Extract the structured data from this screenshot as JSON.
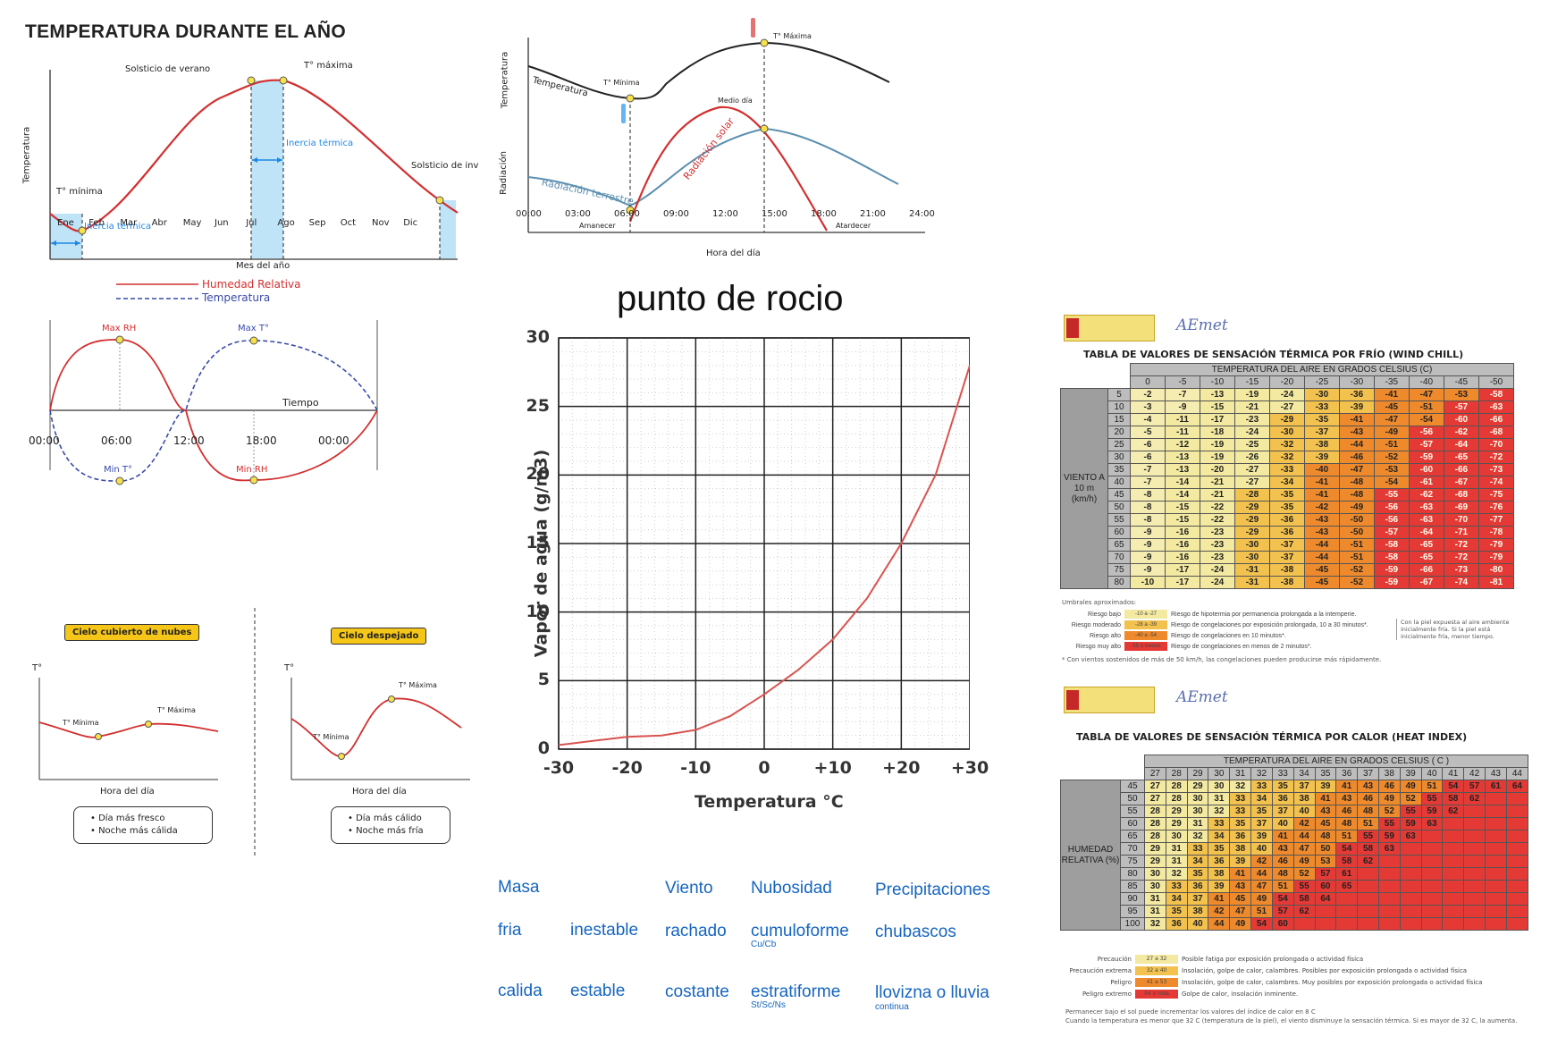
{
  "annual": {
    "title": "TEMPERATURA DURANTE EL AÑO",
    "ylabel": "Temperatura",
    "xlabel": "Mes del año",
    "months": [
      "Ene",
      "Feb",
      "Mar",
      "Abr",
      "May",
      "Jun",
      "Jul",
      "Ago",
      "Sep",
      "Oct",
      "Nov",
      "Dic"
    ],
    "labels": {
      "solsticio_verano": "Solsticio de verano",
      "tmax": "T° máxima",
      "tmin": "T° mínima",
      "inercia1": "Inercia térmica",
      "inercia2": "Inercia térmica",
      "solsticio_invierno": "Solsticio de inv"
    }
  },
  "daily": {
    "ylabel_top": "Temperatura",
    "ylabel_bottom": "Radiación",
    "xlabel": "Hora del día",
    "hours": [
      "00:00",
      "03:00",
      "06:00",
      "09:00",
      "12:00",
      "15:00",
      "18:00",
      "21:00",
      "24:00"
    ],
    "labels": {
      "temperatura": "Temperatura",
      "tmin": "T° Mínima",
      "tmax": "T° Máxima",
      "medio_dia": "Medio día",
      "rad_solar": "Radiación solar",
      "rad_terrestre": "Radiación terrestre",
      "amanecer": "Amanecer",
      "atardecer": "Atardecer"
    }
  },
  "humidity": {
    "legend_rh": "Humedad Relativa",
    "legend_temp": "Temperatura",
    "labels": {
      "max_rh": "Max RH",
      "max_t": "Max T°",
      "min_t": "Min T°",
      "min_rh": "Min RH",
      "tiempo": "Tiempo"
    },
    "hours": [
      "00:00",
      "06:00",
      "12:00",
      "18:00",
      "00:00"
    ]
  },
  "clouds": {
    "left_title": "Cielo cubierto de nubes",
    "right_title": "Cielo despejado",
    "axis_t": "T°",
    "xlabel": "Hora del día",
    "tmin": "T° Mínima",
    "tmax": "T° Máxima",
    "left_notes": [
      "Día más fresco",
      "Noche más cálida"
    ],
    "right_notes": [
      "Día más cálido",
      "Noche más fría"
    ]
  },
  "dewpoint": {
    "title": "punto de rocio",
    "colors": {
      "curve": "#d9534f"
    }
  },
  "chart_data": {
    "type": "line",
    "title": "",
    "xlabel": "Temperatura °C",
    "ylabel": "Vapor de agua (g/m3)",
    "xticks": [
      "-30",
      "-20",
      "-10",
      "0",
      "+10",
      "+20",
      "+30"
    ],
    "yticks": [
      "0",
      "5",
      "10",
      "15",
      "20",
      "25",
      "30"
    ],
    "xlim": [
      -30,
      30
    ],
    "ylim": [
      0,
      30
    ],
    "grid": true,
    "series": [
      {
        "x": [
          -30,
          -25,
          -20,
          -15,
          -10,
          -5,
          0,
          5,
          10,
          15,
          20,
          25,
          30
        ],
        "values": [
          0.3,
          0.6,
          0.9,
          1.0,
          1.4,
          2.4,
          4.0,
          5.8,
          8.0,
          11.0,
          15.0,
          20.0,
          28.0
        ]
      }
    ]
  },
  "air_masses": {
    "headers": [
      "Masa",
      "Viento",
      "Nubosidad",
      "Precipitaciones"
    ],
    "rows": [
      {
        "masa": "fria",
        "estab": "inestable",
        "viento": "rachado",
        "nub": "cumuloforme",
        "nub_sub": "Cu/Cb",
        "prec": "chubascos",
        "prec_sub": ""
      },
      {
        "masa": "calida",
        "estab": "estable",
        "viento": "costante",
        "nub": "estratiforme",
        "nub_sub": "St/Sc/Ns",
        "prec": "llovizna o lluvia",
        "prec_sub": "continua"
      }
    ]
  },
  "windchill": {
    "org": "AEmet",
    "title": "TABLA DE VALORES DE SENSACIÓN TÉRMICA POR FRÍO (WIND CHILL)",
    "col_caption": "TEMPERATURA DEL AIRE EN GRADOS CELSIUS (C)",
    "row_caption": "VIENTO A 10 m (km/h)",
    "temps": [
      "0",
      "-5",
      "-10",
      "-15",
      "-20",
      "-25",
      "-30",
      "-35",
      "-40",
      "-45",
      "-50"
    ],
    "winds": [
      "5",
      "10",
      "15",
      "20",
      "25",
      "30",
      "35",
      "40",
      "45",
      "50",
      "55",
      "60",
      "65",
      "70",
      "75",
      "80"
    ],
    "values": [
      [
        -2,
        -7,
        -13,
        -19,
        -24,
        -30,
        -36,
        -41,
        -47,
        -53,
        -58
      ],
      [
        -3,
        -9,
        -15,
        -21,
        -27,
        -33,
        -39,
        -45,
        -51,
        -57,
        -63
      ],
      [
        -4,
        -11,
        -17,
        -23,
        -29,
        -35,
        -41,
        -47,
        -54,
        -60,
        -66
      ],
      [
        -5,
        -11,
        -18,
        -24,
        -30,
        -37,
        -43,
        -49,
        -56,
        -62,
        -68
      ],
      [
        -6,
        -12,
        -19,
        -25,
        -32,
        -38,
        -44,
        -51,
        -57,
        -64,
        -70
      ],
      [
        -6,
        -13,
        -19,
        -26,
        -32,
        -39,
        -46,
        -52,
        -59,
        -65,
        -72
      ],
      [
        -7,
        -13,
        -20,
        -27,
        -33,
        -40,
        -47,
        -53,
        -60,
        -66,
        -73
      ],
      [
        -7,
        -14,
        -21,
        -27,
        -34,
        -41,
        -48,
        -54,
        -61,
        -67,
        -74
      ],
      [
        -8,
        -14,
        -21,
        -28,
        -35,
        -41,
        -48,
        -55,
        -62,
        -68,
        -75
      ],
      [
        -8,
        -15,
        -22,
        -29,
        -35,
        -42,
        -49,
        -56,
        -63,
        -69,
        -76
      ],
      [
        -8,
        -15,
        -22,
        -29,
        -36,
        -43,
        -50,
        -56,
        -63,
        -70,
        -77
      ],
      [
        -9,
        -16,
        -23,
        -29,
        -36,
        -43,
        -50,
        -57,
        -64,
        -71,
        -78
      ],
      [
        -9,
        -16,
        -23,
        -30,
        -37,
        -44,
        -51,
        -58,
        -65,
        -72,
        -79
      ],
      [
        -9,
        -16,
        -23,
        -30,
        -37,
        -44,
        -51,
        -58,
        -65,
        -72,
        -79
      ],
      [
        -9,
        -17,
        -24,
        -31,
        -38,
        -45,
        -52,
        -59,
        -66,
        -73,
        -80
      ],
      [
        -10,
        -17,
        -24,
        -31,
        -38,
        -45,
        -52,
        -59,
        -67,
        -74,
        -81
      ]
    ],
    "legend_title": "Umbrales aproximados:",
    "legend": [
      {
        "label": "Riesgo bajo",
        "range": "-10 a -27",
        "desc": "Riesgo de hipotermia por permanencia prolongada a la intemperie.",
        "color": "#f3e9a0"
      },
      {
        "label": "Riesgo moderado",
        "range": "-28 a -39",
        "desc": "Riesgo de congelaciones por exposición prolongada, 10 a 30 minutos*.",
        "color": "#f2c14e"
      },
      {
        "label": "Riesgo alto",
        "range": "-40 a -54",
        "desc": "Riesgo de congelaciones en 10 minutos*.",
        "color": "#ee8a2c"
      },
      {
        "label": "Riesgo muy alto",
        "range": "-55 o menos",
        "desc": "Riesgo de congelaciones en menos de 2 minutos*.",
        "color": "#e53935"
      }
    ],
    "side_note": "Con la piel expuesta al aire ambiente inicialmente fría. Si la piel está inicialmente fría, menor tiempo.",
    "footnote": "* Con vientos sostenidos de más de 50 km/h, las congelaciones pueden producirse más rápidamente."
  },
  "heatindex": {
    "org": "AEmet",
    "title": "TABLA DE VALORES DE SENSACIÓN TÉRMICA POR CALOR (HEAT INDEX)",
    "col_caption": "TEMPERATURA DEL AIRE EN GRADOS CELSIUS ( C )",
    "row_caption": "HUMEDAD RELATIVA (%)",
    "temps": [
      "27",
      "28",
      "29",
      "30",
      "31",
      "32",
      "33",
      "34",
      "35",
      "36",
      "37",
      "38",
      "39",
      "40",
      "41",
      "42",
      "43",
      "44"
    ],
    "hums": [
      "45",
      "50",
      "55",
      "60",
      "65",
      "70",
      "75",
      "80",
      "85",
      "90",
      "95",
      "100"
    ],
    "values": [
      [
        27,
        28,
        29,
        30,
        32,
        33,
        35,
        37,
        39,
        41,
        43,
        46,
        49,
        51,
        54,
        57,
        61,
        64
      ],
      [
        27,
        28,
        30,
        31,
        33,
        34,
        36,
        38,
        41,
        43,
        46,
        49,
        52,
        55,
        58,
        62,
        null,
        null
      ],
      [
        28,
        29,
        30,
        32,
        33,
        35,
        37,
        40,
        43,
        46,
        48,
        52,
        55,
        59,
        62,
        null,
        null,
        null
      ],
      [
        28,
        29,
        31,
        33,
        35,
        37,
        40,
        42,
        45,
        48,
        51,
        55,
        59,
        63,
        null,
        null,
        null,
        null
      ],
      [
        28,
        30,
        32,
        34,
        36,
        39,
        41,
        44,
        48,
        51,
        55,
        59,
        63,
        null,
        null,
        null,
        null,
        null
      ],
      [
        29,
        31,
        33,
        35,
        38,
        40,
        43,
        47,
        50,
        54,
        58,
        63,
        null,
        null,
        null,
        null,
        null,
        null
      ],
      [
        29,
        31,
        34,
        36,
        39,
        42,
        46,
        49,
        53,
        58,
        62,
        null,
        null,
        null,
        null,
        null,
        null,
        null
      ],
      [
        30,
        32,
        35,
        38,
        41,
        44,
        48,
        52,
        57,
        61,
        null,
        null,
        null,
        null,
        null,
        null,
        null,
        null
      ],
      [
        30,
        33,
        36,
        39,
        43,
        47,
        51,
        55,
        60,
        65,
        null,
        null,
        null,
        null,
        null,
        null,
        null,
        null
      ],
      [
        31,
        34,
        37,
        41,
        45,
        49,
        54,
        58,
        64,
        null,
        null,
        null,
        null,
        null,
        null,
        null,
        null,
        null
      ],
      [
        31,
        35,
        38,
        42,
        47,
        51,
        57,
        62,
        null,
        null,
        null,
        null,
        null,
        null,
        null,
        null,
        null,
        null
      ],
      [
        32,
        36,
        40,
        44,
        49,
        54,
        60,
        null,
        null,
        null,
        null,
        null,
        null,
        null,
        null,
        null,
        null,
        null
      ]
    ],
    "legend": [
      {
        "label": "Precaución",
        "range": "27 a 32",
        "desc": "Posible fatiga por exposición prolongada o actividad física",
        "color": "#f3e9a0"
      },
      {
        "label": "Precaución extrema",
        "range": "32 a 40",
        "desc": "Insolación, golpe de calor, calambres. Posibles por exposición prolongada o actividad física",
        "color": "#f2c14e"
      },
      {
        "label": "Peligro",
        "range": "41 a 53",
        "desc": "Insolación, golpe de calor, calambres. Muy posibles por exposición prolongada o actividad física",
        "color": "#ee8a2c"
      },
      {
        "label": "Peligro extremo",
        "range": "54 o más",
        "desc": "Golpe de calor, insolación inminente.",
        "color": "#e53935"
      }
    ],
    "foot1": "Permanecer bajo el sol puede incrementar los valores del índice de calor en 8 C",
    "foot2": "Cuando la temperatura es menor que 32 C (temperatura de la piel), el viento disminuye la sensación térmica. Si es mayor de 32 C, la aumenta."
  }
}
